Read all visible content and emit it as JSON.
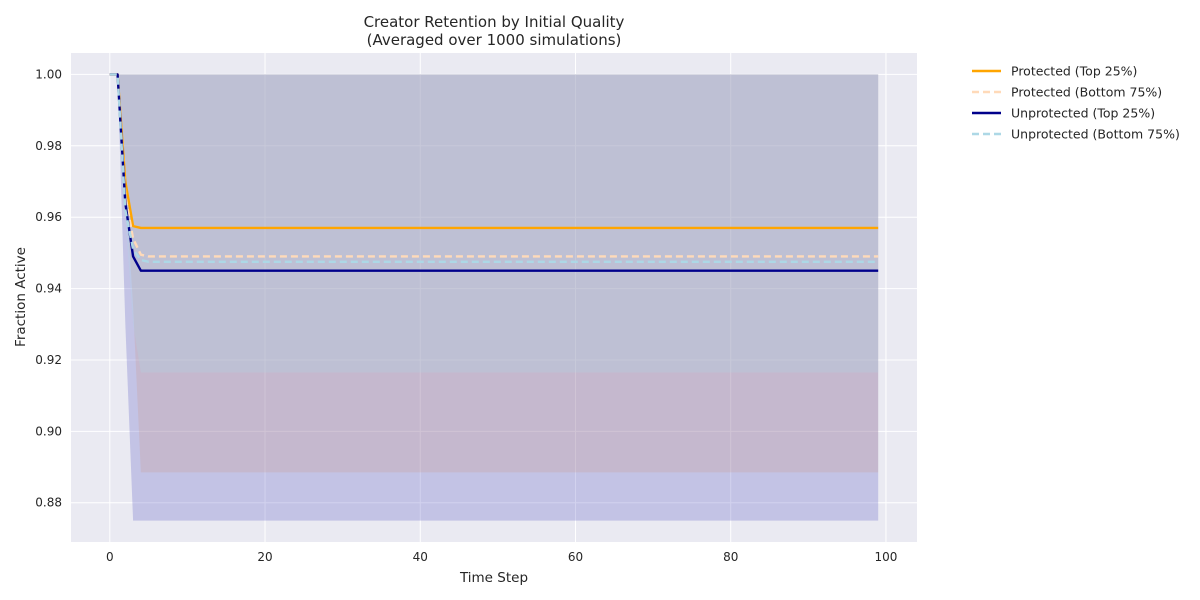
{
  "chart_data": {
    "type": "line",
    "title": "Creator Retention by Initial Quality",
    "subtitle": "(Averaged over 1000 simulations)",
    "xlabel": "Time Step",
    "ylabel": "Fraction Active",
    "xlim": [
      -5,
      104
    ],
    "ylim": [
      0.869,
      1.006
    ],
    "xticks": [
      0,
      20,
      40,
      60,
      80,
      100
    ],
    "yticks": [
      0.88,
      0.9,
      0.92,
      0.94,
      0.96,
      0.98,
      1.0
    ],
    "xtick_labels": [
      "0",
      "20",
      "40",
      "60",
      "80",
      "100"
    ],
    "ytick_labels": [
      "0.88",
      "0.90",
      "0.92",
      "0.94",
      "0.96",
      "0.98",
      "1.00"
    ],
    "grid": true,
    "legend_position": "outside-top-right",
    "bands": [
      {
        "name": "Protected (Top 25%) range",
        "color": "#f4a460",
        "opacity": 0.25,
        "x": [
          0,
          1,
          2,
          3,
          99
        ],
        "lower": [
          1.0,
          1.0,
          1.0,
          1.0,
          1.0
        ],
        "upper": [
          1.0,
          1.0,
          1.0,
          1.0,
          1.0
        ]
      },
      {
        "name": "Protected (Bottom 75%) range",
        "color": "#f4a460",
        "opacity": 0.22,
        "x": [
          0,
          1,
          2,
          3,
          4,
          99
        ],
        "lower": [
          1.0,
          1.0,
          0.97,
          0.935,
          0.8885,
          0.8885
        ],
        "upper": [
          1.0,
          1.0,
          1.0,
          1.0,
          1.0,
          1.0
        ]
      },
      {
        "name": "Unprotected (Top 25%) range",
        "color": "#6a6ac8",
        "opacity": 0.3,
        "x": [
          0,
          1,
          2,
          3,
          99
        ],
        "lower": [
          1.0,
          1.0,
          0.93,
          0.875,
          0.875
        ],
        "upper": [
          1.0,
          1.0,
          1.0,
          1.0,
          1.0
        ]
      },
      {
        "name": "Unprotected (Bottom 75%) range",
        "color": "#add8e6",
        "opacity": 0.25,
        "x": [
          0,
          1,
          2,
          3,
          4,
          99
        ],
        "lower": [
          1.0,
          1.0,
          0.96,
          0.93,
          0.9165,
          0.9165
        ],
        "upper": [
          1.0,
          1.0,
          1.0,
          1.0,
          1.0,
          1.0
        ]
      }
    ],
    "series": [
      {
        "name": "Protected (Top 25%)",
        "color": "#ffa500",
        "dash": "solid",
        "x": [
          0,
          1,
          2,
          3,
          4,
          99
        ],
        "values": [
          1.0,
          1.0,
          0.97,
          0.9575,
          0.957,
          0.957
        ]
      },
      {
        "name": "Protected (Bottom 75%)",
        "color": "#ffdab9",
        "dash": "dashed",
        "x": [
          0,
          1,
          2,
          3,
          4,
          5,
          99
        ],
        "values": [
          1.0,
          1.0,
          0.966,
          0.954,
          0.9495,
          0.949,
          0.949
        ]
      },
      {
        "name": "Unprotected (Top 25%)",
        "color": "#00008b",
        "dash": "solid",
        "x": [
          0,
          1,
          2,
          3,
          4,
          99
        ],
        "values": [
          1.0,
          1.0,
          0.964,
          0.949,
          0.945,
          0.945
        ]
      },
      {
        "name": "Unprotected (Bottom 75%)",
        "color": "#add8e6",
        "dash": "dashed",
        "x": [
          0,
          1,
          2,
          3,
          4,
          5,
          99
        ],
        "values": [
          1.0,
          1.0,
          0.962,
          0.951,
          0.948,
          0.9475,
          0.9475
        ]
      }
    ]
  }
}
